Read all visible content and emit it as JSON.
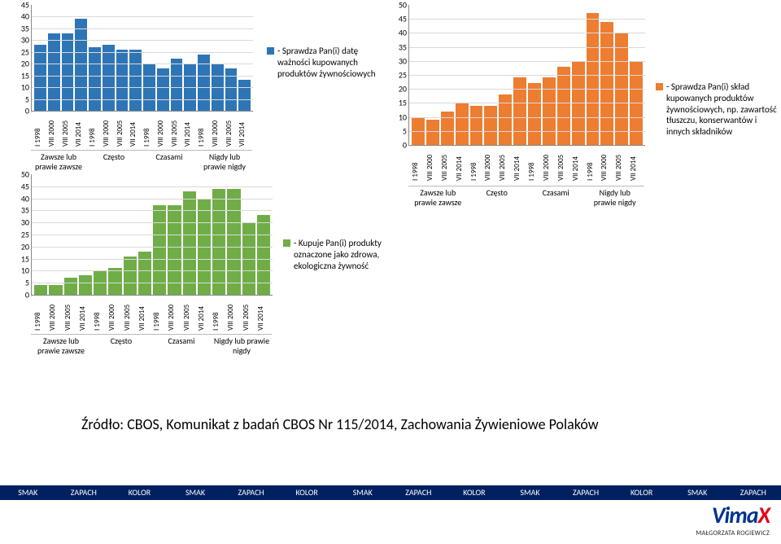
{
  "xlabels": [
    "I 1998",
    "VIII 2000",
    "VIII 2005",
    "VII 2014",
    "I 1998",
    "VIII 2000",
    "VIII 2005",
    "VII 2014",
    "I 1998",
    "VIII 2000",
    "VIII 2005",
    "VII 2014",
    "I 1998",
    "VIII 2000",
    "VIII 2005",
    "VII 2014"
  ],
  "groups": [
    "Zawsze lub\nprawie zawsze",
    "Często",
    "Czasami",
    "Nigdy lub\nprawie nigdy"
  ],
  "groups_c3": [
    "Zawsze lub\nprawie zawsze",
    "Często",
    "Czasami",
    "Nigdy lub prawie\nnigdy"
  ],
  "chart1": {
    "title": "- Sprawdza Pan(i) datę ważności kupowanych produktów żywnościowych",
    "color": "#2e75b6",
    "ymax": 45,
    "ystep": 5,
    "values": [
      28,
      33,
      33,
      39,
      27,
      28,
      26,
      26,
      20,
      18,
      22,
      20,
      24,
      20,
      18,
      13
    ]
  },
  "chart2": {
    "title": "- Sprawdza Pan(i) skład kupowanych produktów żywnościowych, np. zawartość tłuszczu, konserwantów i innych składników",
    "color": "#ed7d31",
    "ymax": 50,
    "ystep": 5,
    "values": [
      10,
      9,
      12,
      15,
      14,
      14,
      18,
      24,
      22,
      24,
      28,
      30,
      47,
      44,
      40,
      30
    ]
  },
  "chart3": {
    "title": "- Kupuje Pan(i) produkty oznaczone jako zdrowa, ekologiczna żywność",
    "color": "#70ad47",
    "ymax": 50,
    "ystep": 5,
    "values": [
      4,
      4,
      7,
      8,
      10,
      11,
      16,
      18,
      37,
      37,
      43,
      40,
      44,
      44,
      30,
      33
    ]
  },
  "source": "Źródło: CBOS, Komunikat z badań CBOS Nr 115/2014, Zachowania Żywieniowe Polaków",
  "footer": [
    "SMAK",
    "ZAPACH",
    "KOLOR",
    "SMAK",
    "ZAPACH",
    "KOLOR",
    "SMAK",
    "ZAPACH",
    "KOLOR",
    "SMAK",
    "ZAPACH",
    "KOLOR",
    "SMAK",
    "ZAPACH"
  ],
  "logo": {
    "brand_html": "Vima<b>X</b>",
    "sub": "MAŁGORZATA ROGIEWICZ"
  },
  "colors": {
    "grid": "#d9d9d9",
    "axis": "#888888",
    "bg": "#ffffff",
    "footer_bg": "#002060"
  }
}
